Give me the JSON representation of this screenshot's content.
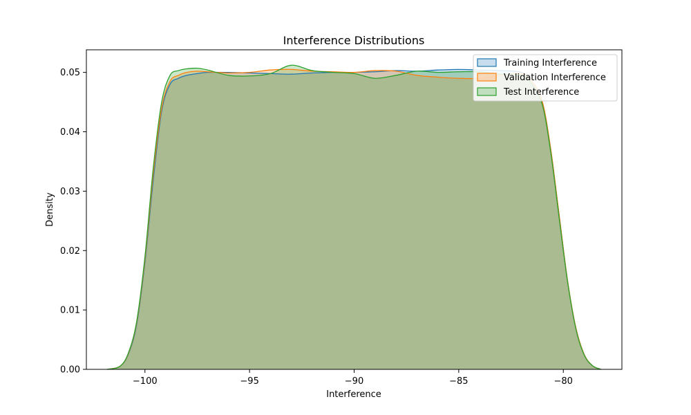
{
  "chart_data": {
    "type": "area",
    "title": "Interference Distributions",
    "xlabel": "Interference",
    "ylabel": "Density",
    "xlim": [
      -102.8,
      -77.2
    ],
    "ylim": [
      0,
      0.0538
    ],
    "xticks": [
      -100,
      -95,
      -90,
      -85,
      -80
    ],
    "xtick_labels": [
      "−100",
      "−95",
      "−90",
      "−85",
      "−80"
    ],
    "yticks": [
      0.0,
      0.01,
      0.02,
      0.03,
      0.04,
      0.05
    ],
    "ytick_labels": [
      "0.00",
      "0.01",
      "0.02",
      "0.03",
      "0.04",
      "0.05"
    ],
    "grid": false,
    "legend_position": "top-right",
    "series": [
      {
        "name": "Training Interference",
        "color": "#1f77b4",
        "x": [
          -101.8,
          -101.2,
          -100.8,
          -100.4,
          -100.0,
          -99.6,
          -99.2,
          -98.8,
          -98.4,
          -98.0,
          -97.5,
          -97.0,
          -96.0,
          -95.0,
          -94.0,
          -93.0,
          -92.0,
          -91.0,
          -90.0,
          -89.0,
          -88.0,
          -87.0,
          -86.0,
          -85.0,
          -84.0,
          -83.0,
          -82.0,
          -81.5,
          -81.0,
          -80.6,
          -80.2,
          -79.8,
          -79.4,
          -79.0,
          -78.6,
          -78.2
        ],
        "y": [
          0.0,
          0.0005,
          0.0025,
          0.0075,
          0.018,
          0.032,
          0.0435,
          0.048,
          0.049,
          0.0495,
          0.0498,
          0.05,
          0.05,
          0.0499,
          0.0498,
          0.0497,
          0.0499,
          0.05,
          0.05,
          0.0501,
          0.0503,
          0.0502,
          0.0504,
          0.0505,
          0.0504,
          0.0503,
          0.05,
          0.0485,
          0.045,
          0.037,
          0.026,
          0.015,
          0.007,
          0.0025,
          0.0006,
          0.0
        ]
      },
      {
        "name": "Validation Interference",
        "color": "#ff7f0e",
        "x": [
          -101.8,
          -101.2,
          -100.8,
          -100.4,
          -100.0,
          -99.6,
          -99.2,
          -98.8,
          -98.4,
          -98.0,
          -97.5,
          -97.0,
          -96.0,
          -95.0,
          -94.0,
          -93.0,
          -92.0,
          -91.0,
          -90.0,
          -89.0,
          -88.0,
          -87.0,
          -86.0,
          -85.0,
          -84.0,
          -83.0,
          -82.0,
          -81.5,
          -81.0,
          -80.6,
          -80.2,
          -79.8,
          -79.4,
          -79.0,
          -78.6,
          -78.2
        ],
        "y": [
          0.0,
          0.0005,
          0.0026,
          0.0078,
          0.0185,
          0.033,
          0.044,
          0.0485,
          0.0495,
          0.05,
          0.0502,
          0.0501,
          0.0499,
          0.05,
          0.0504,
          0.0505,
          0.0502,
          0.0501,
          0.05,
          0.0503,
          0.0502,
          0.0495,
          0.0492,
          0.049,
          0.049,
          0.0495,
          0.0498,
          0.0485,
          0.045,
          0.037,
          0.026,
          0.015,
          0.007,
          0.0025,
          0.0006,
          0.0
        ]
      },
      {
        "name": "Test Interference",
        "color": "#2ca02c",
        "x": [
          -101.8,
          -101.2,
          -100.8,
          -100.4,
          -100.0,
          -99.6,
          -99.2,
          -98.8,
          -98.4,
          -98.0,
          -97.5,
          -97.0,
          -96.0,
          -95.0,
          -94.0,
          -93.0,
          -92.0,
          -91.0,
          -90.0,
          -89.0,
          -88.0,
          -87.0,
          -86.0,
          -85.0,
          -84.0,
          -83.0,
          -82.0,
          -81.5,
          -81.0,
          -80.6,
          -80.2,
          -79.8,
          -79.4,
          -79.0,
          -78.6,
          -78.2
        ],
        "y": [
          0.0,
          0.0005,
          0.0027,
          0.008,
          0.019,
          0.034,
          0.045,
          0.0495,
          0.0503,
          0.0506,
          0.0507,
          0.0504,
          0.0495,
          0.0494,
          0.0498,
          0.0512,
          0.0503,
          0.05,
          0.0498,
          0.049,
          0.0495,
          0.0502,
          0.05,
          0.0501,
          0.0501,
          0.0497,
          0.0495,
          0.048,
          0.0445,
          0.0365,
          0.0255,
          0.0148,
          0.0068,
          0.0024,
          0.0006,
          0.0
        ]
      }
    ]
  }
}
